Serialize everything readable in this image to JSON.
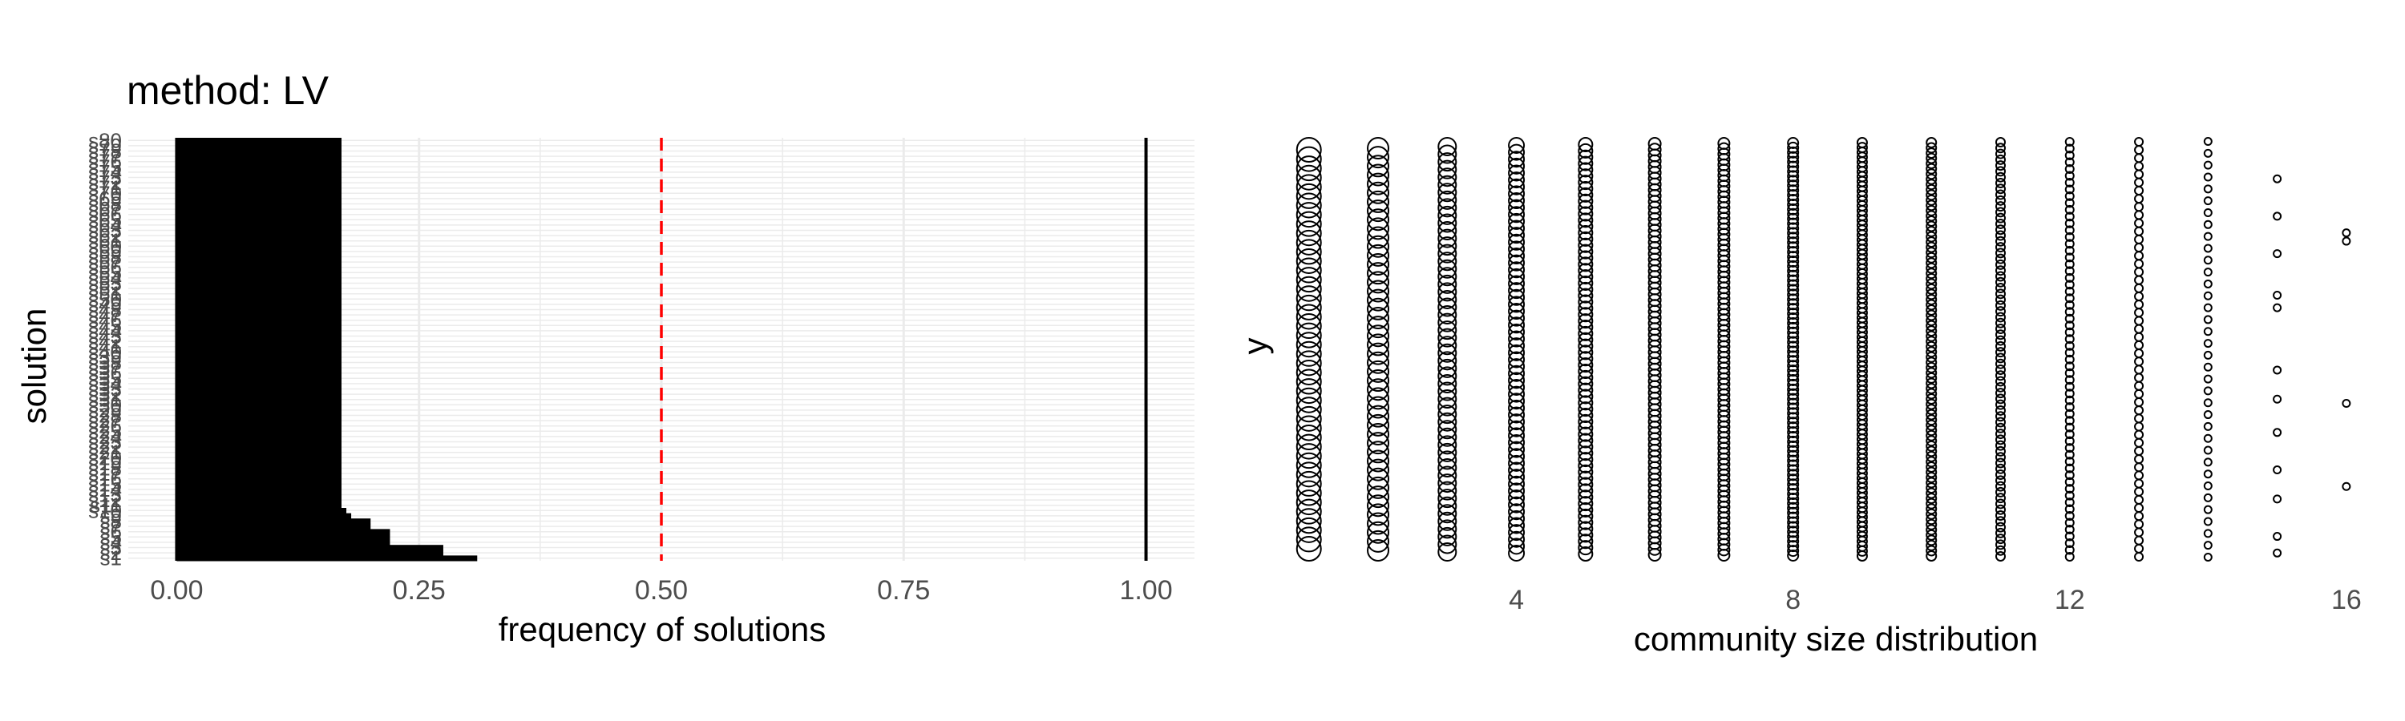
{
  "chart_data": [
    {
      "type": "bar",
      "orientation": "horizontal",
      "title": "method: LV",
      "xlabel": "frequency of solutions",
      "ylabel": "solution",
      "xlim": [
        -0.05,
        1.05
      ],
      "x_ticks": [
        "0.00",
        "0.25",
        "0.50",
        "0.75",
        "1.00"
      ],
      "x_tick_values": [
        0,
        0.25,
        0.5,
        0.75,
        1.0
      ],
      "grid": true,
      "reference_lines": [
        {
          "x": 0.5,
          "style": "dashed",
          "color": "#ff0000"
        },
        {
          "x": 0.0,
          "style": "solid",
          "color": "#000000"
        },
        {
          "x": 1.0,
          "style": "solid",
          "color": "#000000"
        }
      ],
      "y_tick_labels": [
        "s1",
        "s2",
        "s3",
        "s4",
        "s5",
        "s6",
        "s7",
        "s8",
        "s9",
        "s10",
        "s11",
        "s12",
        "s13",
        "s14",
        "s15",
        "s16",
        "s17",
        "s18",
        "s19",
        "s20",
        "s21",
        "s22",
        "s23",
        "s24",
        "s25",
        "s26",
        "s27",
        "s28",
        "s29",
        "s30",
        "s31",
        "s32",
        "s33",
        "s34",
        "s35",
        "s36",
        "s37",
        "s38",
        "s39",
        "s40",
        "s41",
        "s42",
        "s43",
        "s44",
        "s45",
        "s46",
        "s47",
        "s48",
        "s49",
        "s50",
        "s51",
        "s52",
        "s53",
        "s54",
        "s55",
        "s56",
        "s57",
        "s58",
        "s59",
        "s60",
        "s61",
        "s62",
        "s63",
        "s64",
        "s65",
        "s66",
        "s67",
        "s68",
        "s69",
        "s70",
        "s71",
        "s72",
        "s73",
        "s74",
        "s75",
        "s76",
        "s77",
        "s78",
        "s79",
        "s80"
      ],
      "values": [
        0.31,
        0.275,
        0.275,
        0.22,
        0.22,
        0.22,
        0.2,
        0.2,
        0.18,
        0.175,
        0.17,
        0.17,
        0.17,
        0.17,
        0.17,
        0.17,
        0.17,
        0.17,
        0.17,
        0.17,
        0.17,
        0.17,
        0.17,
        0.17,
        0.17,
        0.17,
        0.17,
        0.17,
        0.17,
        0.17,
        0.17,
        0.17,
        0.17,
        0.17,
        0.17,
        0.17,
        0.17,
        0.17,
        0.17,
        0.17,
        0.17,
        0.17,
        0.17,
        0.17,
        0.17,
        0.17,
        0.17,
        0.17,
        0.17,
        0.17,
        0.17,
        0.17,
        0.17,
        0.17,
        0.17,
        0.17,
        0.17,
        0.17,
        0.17,
        0.17,
        0.17,
        0.17,
        0.17,
        0.17,
        0.17,
        0.17,
        0.17,
        0.17,
        0.17,
        0.17,
        0.17,
        0.17,
        0.17,
        0.17,
        0.17,
        0.17,
        0.17,
        0.17,
        0.17,
        0.17
      ],
      "bar_color": "#000000"
    },
    {
      "type": "scatter",
      "title": "",
      "xlabel": "community size distribution",
      "ylabel": "y",
      "xlim": [
        1.2,
        16.5
      ],
      "x_ticks": [
        "4",
        "8",
        "12",
        "16"
      ],
      "x_tick_values": [
        4,
        8,
        12,
        16
      ],
      "grid": false,
      "marker": "open-circle",
      "columns": [
        {
          "x": 1,
          "count": 44,
          "size": 15
        },
        {
          "x": 2,
          "count": 46,
          "size": 13
        },
        {
          "x": 3,
          "count": 54,
          "size": 11
        },
        {
          "x": 4,
          "count": 60,
          "size": 9.5
        },
        {
          "x": 5,
          "count": 66,
          "size": 8.5
        },
        {
          "x": 6,
          "count": 72,
          "size": 7.5
        },
        {
          "x": 7,
          "count": 78,
          "size": 7
        },
        {
          "x": 8,
          "count": 88,
          "size": 6.5
        },
        {
          "x": 9,
          "count": 86,
          "size": 6
        },
        {
          "x": 10,
          "count": 80,
          "size": 6
        },
        {
          "x": 11,
          "count": 72,
          "size": 5.5
        },
        {
          "x": 12,
          "count": 62,
          "size": 5
        },
        {
          "x": 13,
          "count": 52,
          "size": 5
        },
        {
          "x": 14,
          "count": 36,
          "size": 4.5
        },
        {
          "x": 15,
          "count": 12,
          "size": 4.5
        },
        {
          "x": 16,
          "count": 4,
          "size": 4.5
        }
      ]
    }
  ]
}
